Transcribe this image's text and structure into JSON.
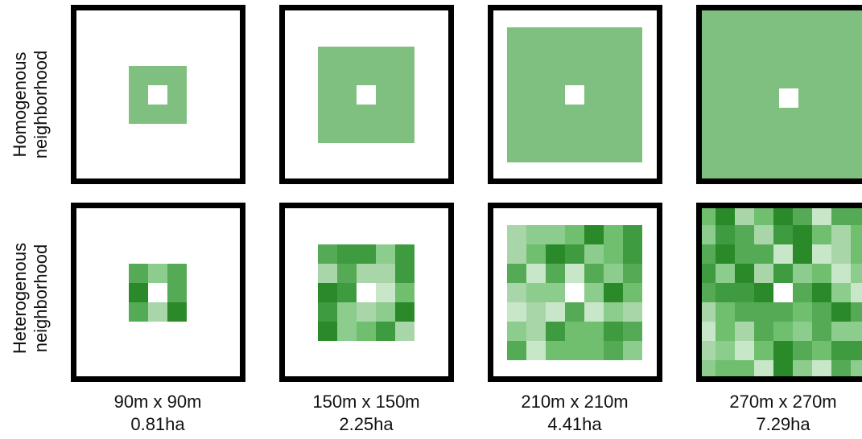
{
  "row_labels": [
    {
      "line1": "Homogenous",
      "line2": "neighborhood"
    },
    {
      "line1": "Heterogenous",
      "line2": "neighborhood"
    }
  ],
  "columns": [
    {
      "size": "90m x 90m",
      "area": "0.81ha"
    },
    {
      "size": "150m x 150m",
      "area": "2.25ha"
    },
    {
      "size": "210m x 210m",
      "area": "4.41ha"
    },
    {
      "size": "270m x 270m",
      "area": "7.29ha"
    }
  ],
  "colors": {
    "homogeneous_fill": "#7fbf7f",
    "frame": "#000000",
    "center": "#ffffff",
    "green_shades": [
      "#c8e6c8",
      "#a9d6a9",
      "#8ccc8c",
      "#6fbf6f",
      "#55ab55",
      "#3f9b3f",
      "#2a8a2a"
    ]
  }
}
